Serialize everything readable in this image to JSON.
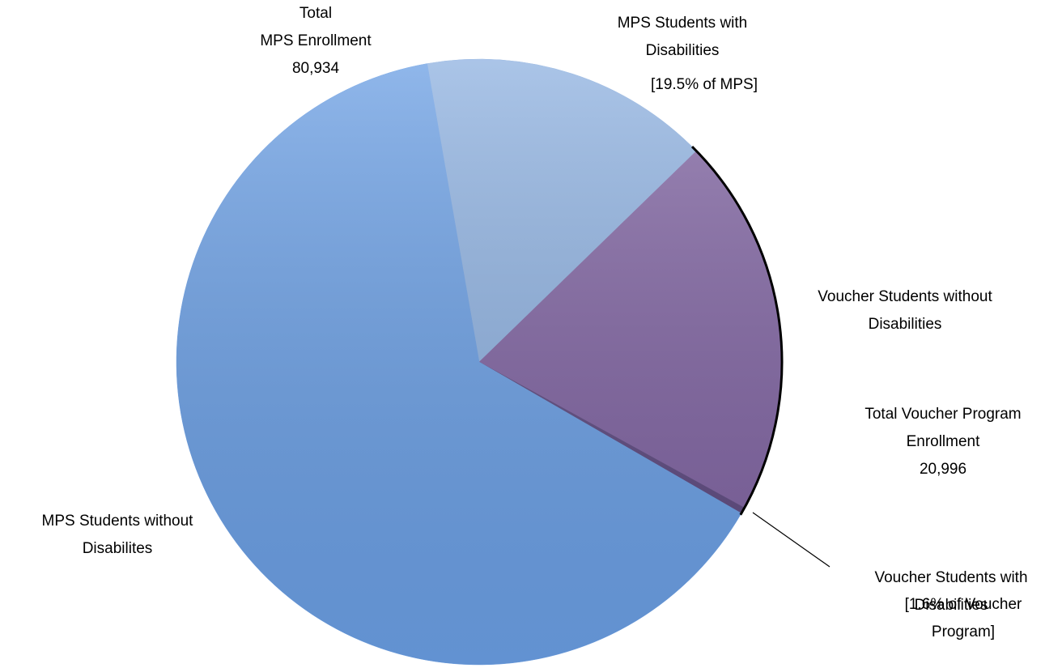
{
  "chart_data": {
    "type": "pie",
    "categories": [
      "MPS Students with Disabilities",
      "Voucher Students without Disabilities",
      "Voucher Students with Disabilities",
      "MPS Students without Disabilites"
    ],
    "values": [
      15782,
      20660,
      336,
      65152
    ],
    "colors": [
      "#8eb1e0",
      "#8064a2",
      "#5e4a80",
      "#6b9fe4"
    ],
    "annotations": [
      {
        "lines": [
          "Total",
          "MPS Enrollment",
          "80,934"
        ]
      },
      {
        "lines": [
          "[19.5% of MPS]"
        ]
      },
      {
        "lines": [
          "Total Voucher Program",
          "Enrollment",
          "20,996"
        ]
      },
      {
        "lines": [
          "[1.6% of Voucher Program]"
        ]
      }
    ]
  }
}
